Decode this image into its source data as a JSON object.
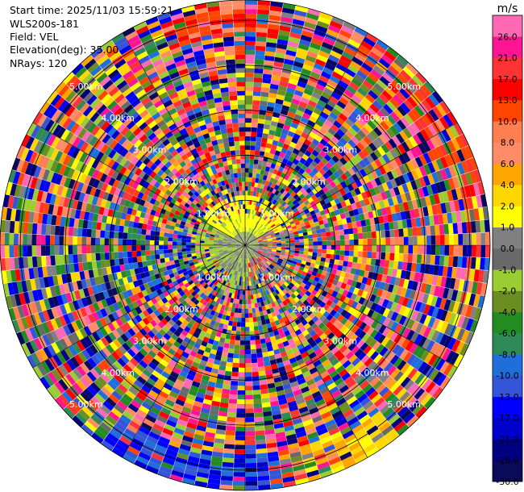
{
  "header": {
    "start_time": "Start time: 2025/11/03 15:59:21",
    "instrument": "WLS200s-181",
    "field": "Field: VEL",
    "elevation": "Elevation(deg): 35.00",
    "nrays": "NRays: 120"
  },
  "chart_data": {
    "type": "heatmap",
    "subtype": "polar-ppi",
    "title": "",
    "field": "VEL",
    "units": "m/s",
    "n_rays": 120,
    "elevation_deg": 35.0,
    "range_rings_km": [
      1.0,
      2.0,
      3.0,
      4.0,
      5.0
    ],
    "range_ring_labels": [
      "1.00km",
      "2.00km",
      "3.00km",
      "4.00km",
      "5.00km"
    ],
    "max_range_km": 5.45,
    "colorbar": {
      "label": "m/s",
      "ticks": [
        "-30.0",
        "-26.0",
        "-21.0",
        "-17.0",
        "-13.0",
        "-10.0",
        "-8.0",
        "-6.0",
        "-4.0",
        "-2.0",
        "-1.0",
        "0.0",
        "1.0",
        "2.0",
        "4.0",
        "6.0",
        "8.0",
        "10.0",
        "13.0",
        "17.0",
        "21.0",
        "26.0"
      ],
      "bin_colors": [
        "#0a0a5a",
        "#000080",
        "#0000cd",
        "#0000ff",
        "#3455d8",
        "#1e6fd9",
        "#2e8b57",
        "#228b22",
        "#6b8e23",
        "#9acd32",
        "#696969",
        "#808080",
        "#ffff00",
        "#ffd700",
        "#ffa500",
        "#ff8c66",
        "#ff7f50",
        "#ff4500",
        "#ff0000",
        "#ff3333",
        "#ff1493",
        "#ff69b4"
      ]
    }
  }
}
